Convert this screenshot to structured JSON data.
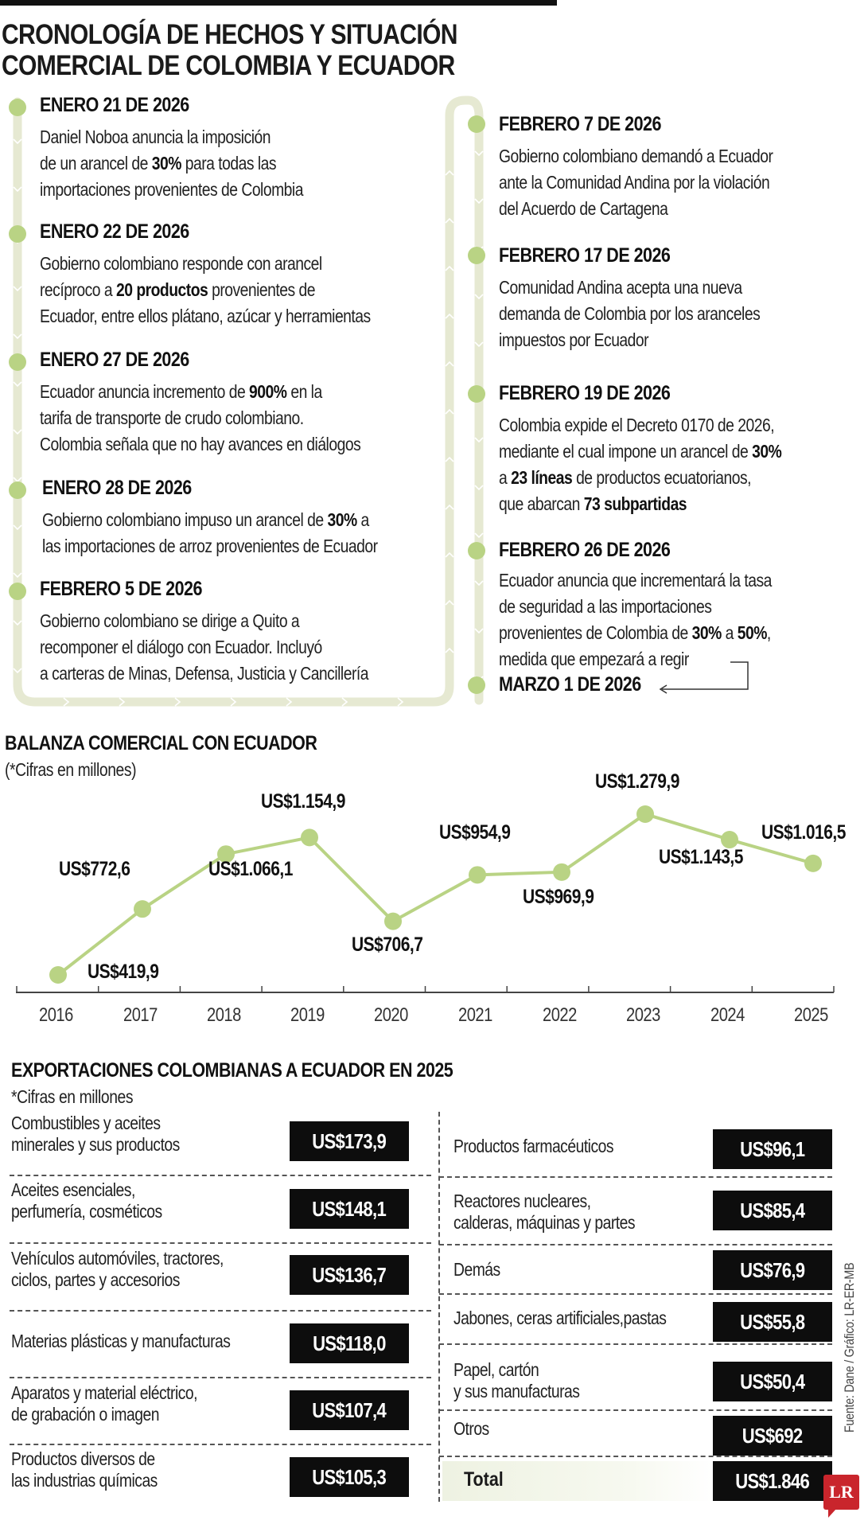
{
  "header": {
    "title_line1": "CRONOLOGÍA DE HECHOS Y SITUACIÓN",
    "title_line2": "COMERCIAL DE COLOMBIA Y ECUADOR"
  },
  "colors": {
    "accent_green": "#b9d384",
    "path_green": "#e6e9d2",
    "value_box": "#0d0d0d",
    "logo_red": "#c9252c"
  },
  "timeline": {
    "left": [
      {
        "date": "ENERO 21 DE 2026",
        "lines": [
          "Daniel Noboa anuncia la imposición",
          "de un arancel de <b>30%</b> para todas las",
          "importaciones provenientes de Colombia"
        ]
      },
      {
        "date": "ENERO 22 DE 2026",
        "lines": [
          "Gobierno colombiano responde con arancel",
          "recíproco a <b>20 productos</b> provenientes de",
          "Ecuador, entre ellos plátano, azúcar y herramientas"
        ]
      },
      {
        "date": "ENERO 27 DE 2026",
        "lines": [
          "Ecuador anuncia incremento de <b>900%</b> en la",
          "tarifa de transporte de crudo colombiano.",
          "Colombia señala que no hay avances en diálogos"
        ]
      },
      {
        "date": "ENERO 28 DE 2026",
        "lines": [
          "Gobierno colombiano impuso un arancel de <b>30%</b> a",
          "las importaciones de arroz provenientes de Ecuador"
        ]
      },
      {
        "date": "FEBRERO 5 DE 2026",
        "lines": [
          "Gobierno colombiano se dirige a Quito a",
          "recomponer el diálogo con Ecuador. Incluyó",
          " a carteras de Minas, Defensa, Justicia y Cancillería"
        ]
      }
    ],
    "right": [
      {
        "date": "FEBRERO 7 DE 2026",
        "lines": [
          "Gobierno colombiano demandó a Ecuador",
          "ante la Comunidad Andina por la violación",
          "del Acuerdo de Cartagena"
        ]
      },
      {
        "date": "FEBRERO 17 DE 2026",
        "lines": [
          "Comunidad Andina acepta una nueva",
          "demanda de Colombia por los aranceles",
          "impuestos por Ecuador"
        ]
      },
      {
        "date": "FEBRERO 19  DE 2026",
        "lines": [
          "Colombia expide el Decreto 0170 de 2026,",
          "mediante el cual impone un arancel de <b>30%</b>",
          "a <b>23 líneas</b> de productos ecuatorianos,",
          "que abarcan <b>73 subpartidas</b>"
        ]
      },
      {
        "date": "FEBRERO 26  DE 2026",
        "lines": [
          "Ecuador anuncia que incrementará la tasa",
          "de seguridad a las importaciones",
          "provenientes de Colombia de <b>30%</b> a <b>50%</b>,",
          "medida que empezará a regir"
        ]
      },
      {
        "date": "MARZO 1 DE 2026",
        "lines": []
      }
    ]
  },
  "chart_data": {
    "type": "line",
    "title": "BALANZA COMERCIAL CON ECUADOR",
    "subtitle": "(*Cifras en millones)",
    "xlabel": "",
    "ylabel": "US$ millones",
    "categories": [
      "2016",
      "2017",
      "2018",
      "2019",
      "2020",
      "2021",
      "2022",
      "2023",
      "2024",
      "2025"
    ],
    "values": [
      419.9,
      772.6,
      1066.1,
      1154.9,
      706.7,
      954.9,
      969.9,
      1279.9,
      1143.5,
      1016.5
    ],
    "labels": [
      "US$419,9",
      "US$772,6",
      "US$1.066,1",
      "US$1.154,9",
      "US$706,7",
      "US$954,9",
      "US$969,9",
      "US$1.279,9",
      "US$1.143,5",
      "US$1.016,5"
    ],
    "grid": false,
    "legend": "none",
    "ylim": [
      300,
      1350
    ],
    "line_color": "#b9d384"
  },
  "exports": {
    "title": "EXPORTACIONES COLOMBIANAS A ECUADOR EN 2025",
    "subtitle": "*Cifras en millones",
    "left": [
      {
        "label": [
          "Combustibles y aceites",
          "minerales y sus productos"
        ],
        "value": "US$173,9"
      },
      {
        "label": [
          "Aceites esenciales,",
          "perfumería, cosméticos"
        ],
        "value": "US$148,1"
      },
      {
        "label": [
          "Vehículos automóviles, tractores,",
          "ciclos, partes y accesorios"
        ],
        "value": "US$136,7"
      },
      {
        "label": [
          "Materias plásticas y manufacturas"
        ],
        "value": "US$118,0"
      },
      {
        "label": [
          "Aparatos y material eléctrico,",
          "de grabación o imagen"
        ],
        "value": "US$107,4"
      },
      {
        "label": [
          "Productos diversos de",
          "las industrias químicas"
        ],
        "value": "US$105,3"
      }
    ],
    "right": [
      {
        "label": [
          "Productos farmacéuticos"
        ],
        "value": "US$96,1"
      },
      {
        "label": [
          "Reactores nucleares,",
          "calderas, máquinas y partes"
        ],
        "value": "US$85,4"
      },
      {
        "label": [
          "Demás"
        ],
        "value": "US$76,9"
      },
      {
        "label": [
          "Jabones, ceras artificiales,pastas"
        ],
        "value": "US$55,8"
      },
      {
        "label": [
          "Papel, cartón",
          "y sus manufacturas"
        ],
        "value": "US$50,4"
      },
      {
        "label": [
          "Otros"
        ],
        "value": "US$692"
      }
    ],
    "total_label": "Total",
    "total_value": "US$1.846"
  },
  "footer": {
    "source": "Fuente: Dane / Gráfico: LR-ER-MB",
    "logo": "LR"
  }
}
